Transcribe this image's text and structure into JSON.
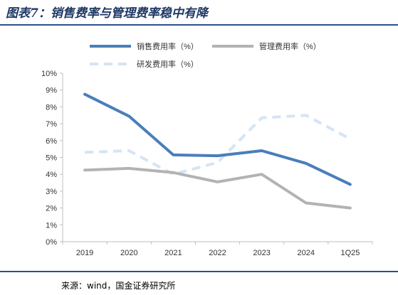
{
  "figure": {
    "title": "图表7：销售费率与管理费率稳中有降",
    "source": "来源：wind，国金证券研究所"
  },
  "colors": {
    "title": "#1f3864",
    "rule": "#2b4f8c",
    "axis": "#bfbfbf",
    "text": "#333333"
  },
  "chart_data": {
    "type": "line",
    "x": [
      "2019",
      "2020",
      "2021",
      "2022",
      "2023",
      "2024",
      "1Q25"
    ],
    "ylim": [
      0,
      10
    ],
    "yticks": [
      "0%",
      "1%",
      "2%",
      "3%",
      "4%",
      "5%",
      "6%",
      "7%",
      "8%",
      "9%",
      "10%"
    ],
    "grid": false,
    "legend_position": "top",
    "series": [
      {
        "name": "销售费用率（%）",
        "color": "#4a7ebb",
        "dash": "solid",
        "values": [
          8.75,
          7.45,
          5.15,
          5.1,
          5.4,
          4.65,
          3.4
        ]
      },
      {
        "name": "管理费用率（%）",
        "color": "#b3b3b3",
        "dash": "solid",
        "values": [
          4.25,
          4.35,
          4.1,
          3.55,
          4.0,
          2.3,
          2.0
        ]
      },
      {
        "name": "研发费用率（%）",
        "color": "#d6e4f4",
        "dash": "dashed",
        "values": [
          5.3,
          5.4,
          4.0,
          4.7,
          7.35,
          7.5,
          6.1
        ]
      }
    ]
  }
}
